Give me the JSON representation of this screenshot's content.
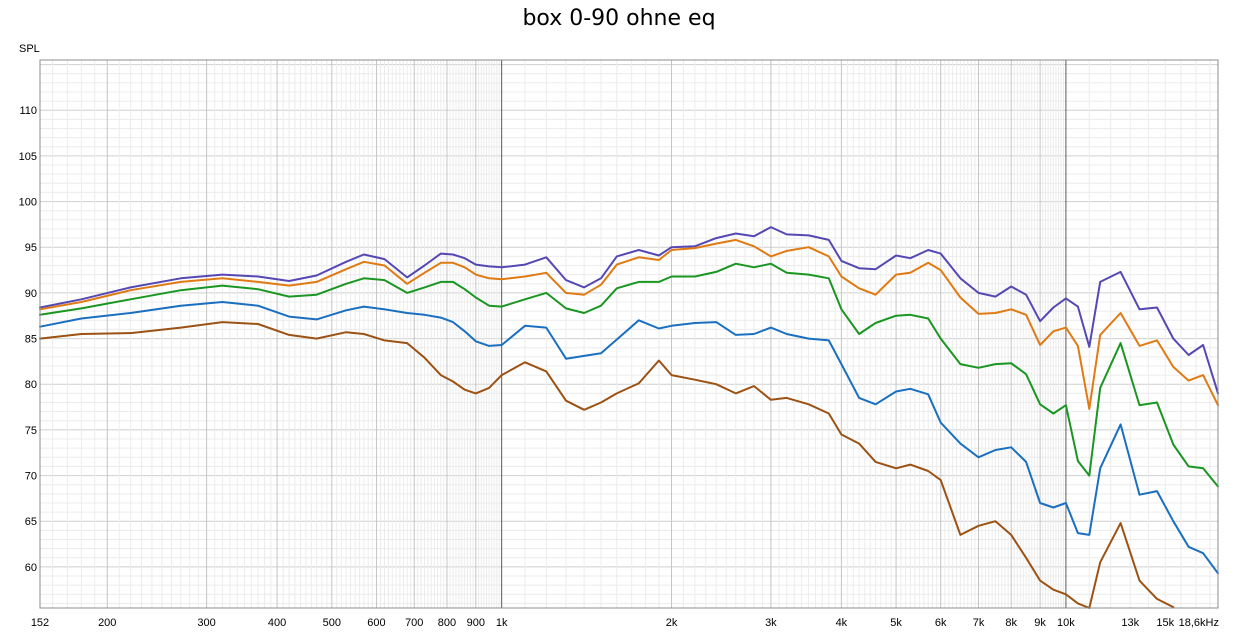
{
  "chart_data": {
    "type": "line",
    "title": "box 0-90 ohne eq",
    "ylabel": "SPL",
    "xlabel": "",
    "x_scale": "log",
    "xlim": [
      152,
      18600
    ],
    "ylim": [
      55.5,
      115.5
    ],
    "grid": true,
    "legend": "none",
    "x_tick_labels": [
      {
        "value": 152,
        "label": "152"
      },
      {
        "value": 200,
        "label": "200"
      },
      {
        "value": 300,
        "label": "300"
      },
      {
        "value": 400,
        "label": "400"
      },
      {
        "value": 500,
        "label": "500"
      },
      {
        "value": 600,
        "label": "600"
      },
      {
        "value": 700,
        "label": "700"
      },
      {
        "value": 800,
        "label": "800"
      },
      {
        "value": 900,
        "label": "900"
      },
      {
        "value": 1000,
        "label": "1k"
      },
      {
        "value": 2000,
        "label": "2k"
      },
      {
        "value": 3000,
        "label": "3k"
      },
      {
        "value": 4000,
        "label": "4k"
      },
      {
        "value": 5000,
        "label": "5k"
      },
      {
        "value": 6000,
        "label": "6k"
      },
      {
        "value": 7000,
        "label": "7k"
      },
      {
        "value": 8000,
        "label": "8k"
      },
      {
        "value": 9000,
        "label": "9k"
      },
      {
        "value": 10000,
        "label": "10k"
      },
      {
        "value": 13000,
        "label": "13k"
      },
      {
        "value": 15000,
        "label": "15k"
      },
      {
        "value": 18600,
        "label": "18,6kHz"
      }
    ],
    "y_tick_labels": [
      {
        "value": 60,
        "label": "60"
      },
      {
        "value": 65,
        "label": "65"
      },
      {
        "value": 70,
        "label": "70"
      },
      {
        "value": 75,
        "label": "75"
      },
      {
        "value": 80,
        "label": "80"
      },
      {
        "value": 85,
        "label": "85"
      },
      {
        "value": 90,
        "label": "90"
      },
      {
        "value": 95,
        "label": "95"
      },
      {
        "value": 100,
        "label": "100"
      },
      {
        "value": 105,
        "label": "105"
      },
      {
        "value": 110,
        "label": "110"
      }
    ],
    "series": [
      {
        "color": "#5548b4",
        "x": [
          152,
          180,
          220,
          270,
          320,
          370,
          420,
          470,
          530,
          570,
          620,
          680,
          730,
          780,
          820,
          860,
          900,
          950,
          1000,
          1100,
          1200,
          1300,
          1400,
          1500,
          1600,
          1750,
          1900,
          2000,
          2200,
          2400,
          2600,
          2800,
          3000,
          3200,
          3500,
          3800,
          4000,
          4300,
          4600,
          5000,
          5300,
          5700,
          6000,
          6500,
          7000,
          7500,
          8000,
          8500,
          9000,
          9500,
          10000,
          10500,
          11000,
          11500,
          12500,
          13500,
          14500,
          15500,
          16500,
          17500,
          18600
        ],
        "y": [
          88.4,
          89.3,
          90.6,
          91.6,
          92.0,
          91.8,
          91.3,
          91.9,
          93.4,
          94.2,
          93.7,
          91.7,
          93.0,
          94.3,
          94.2,
          93.8,
          93.1,
          92.9,
          92.8,
          93.1,
          93.9,
          91.4,
          90.6,
          91.6,
          94.0,
          94.7,
          94.1,
          95.0,
          95.1,
          96.0,
          96.5,
          96.2,
          97.2,
          96.4,
          96.3,
          95.8,
          93.5,
          92.7,
          92.6,
          94.1,
          93.8,
          94.7,
          94.3,
          91.6,
          90.0,
          89.6,
          90.7,
          89.8,
          86.9,
          88.4,
          89.4,
          88.5,
          84.1,
          91.2,
          92.3,
          88.2,
          88.4,
          85.0,
          83.2,
          84.3,
          79.0
        ]
      },
      {
        "color": "#e07a12",
        "x": [
          152,
          180,
          220,
          270,
          320,
          370,
          420,
          470,
          530,
          570,
          620,
          680,
          730,
          780,
          820,
          860,
          900,
          950,
          1000,
          1100,
          1200,
          1300,
          1400,
          1500,
          1600,
          1750,
          1900,
          2000,
          2200,
          2400,
          2600,
          2800,
          3000,
          3200,
          3500,
          3800,
          4000,
          4300,
          4600,
          5000,
          5300,
          5700,
          6000,
          6500,
          7000,
          7500,
          8000,
          8500,
          9000,
          9500,
          10000,
          10500,
          11000,
          11500,
          12500,
          13500,
          14500,
          15500,
          16500,
          17500,
          18600
        ],
        "y": [
          88.2,
          89.0,
          90.3,
          91.2,
          91.6,
          91.2,
          90.8,
          91.2,
          92.6,
          93.4,
          93.0,
          91.0,
          92.2,
          93.3,
          93.3,
          92.8,
          92.0,
          91.6,
          91.5,
          91.8,
          92.2,
          90.0,
          89.8,
          90.9,
          93.1,
          93.9,
          93.6,
          94.7,
          94.9,
          95.4,
          95.8,
          95.1,
          94.0,
          94.6,
          95.0,
          94.0,
          91.8,
          90.5,
          89.8,
          92.0,
          92.2,
          93.3,
          92.5,
          89.5,
          87.7,
          87.8,
          88.2,
          87.6,
          84.3,
          85.8,
          86.2,
          84.2,
          77.3,
          85.4,
          87.8,
          84.2,
          84.8,
          81.9,
          80.4,
          81.0,
          77.7
        ]
      },
      {
        "color": "#1a9622",
        "x": [
          152,
          180,
          220,
          270,
          320,
          370,
          420,
          470,
          530,
          570,
          620,
          680,
          730,
          780,
          820,
          860,
          900,
          950,
          1000,
          1100,
          1200,
          1300,
          1400,
          1500,
          1600,
          1750,
          1900,
          2000,
          2200,
          2400,
          2600,
          2800,
          3000,
          3200,
          3500,
          3800,
          4000,
          4300,
          4600,
          5000,
          5300,
          5700,
          6000,
          6500,
          7000,
          7500,
          8000,
          8500,
          9000,
          9500,
          10000,
          10500,
          11000,
          11500,
          12500,
          13500,
          14500,
          15500,
          16500,
          17500,
          18600
        ],
        "y": [
          87.6,
          88.3,
          89.3,
          90.3,
          90.8,
          90.4,
          89.6,
          89.8,
          91.0,
          91.6,
          91.4,
          90.0,
          90.6,
          91.2,
          91.2,
          90.4,
          89.5,
          88.6,
          88.5,
          89.3,
          90.0,
          88.3,
          87.8,
          88.6,
          90.5,
          91.2,
          91.2,
          91.8,
          91.8,
          92.3,
          93.2,
          92.8,
          93.2,
          92.2,
          92.0,
          91.6,
          88.2,
          85.5,
          86.7,
          87.5,
          87.6,
          87.2,
          85.0,
          82.2,
          81.8,
          82.2,
          82.3,
          81.1,
          77.8,
          76.8,
          77.7,
          71.6,
          70.0,
          79.6,
          84.5,
          77.7,
          78.0,
          73.4,
          71.0,
          70.8,
          68.8
        ]
      },
      {
        "color": "#1a6fc0",
        "x": [
          152,
          180,
          220,
          270,
          320,
          370,
          420,
          470,
          530,
          570,
          620,
          680,
          730,
          780,
          820,
          860,
          900,
          950,
          1000,
          1100,
          1200,
          1300,
          1400,
          1500,
          1600,
          1750,
          1900,
          2000,
          2200,
          2400,
          2600,
          2800,
          3000,
          3200,
          3500,
          3800,
          4000,
          4300,
          4600,
          5000,
          5300,
          5700,
          6000,
          6500,
          7000,
          7500,
          8000,
          8500,
          9000,
          9500,
          10000,
          10500,
          11000,
          11500,
          12500,
          13500,
          14500,
          15500,
          16500,
          17500,
          18600
        ],
        "y": [
          86.3,
          87.2,
          87.8,
          88.6,
          89.0,
          88.6,
          87.4,
          87.1,
          88.1,
          88.5,
          88.2,
          87.8,
          87.6,
          87.3,
          86.8,
          85.8,
          84.7,
          84.2,
          84.3,
          86.4,
          86.2,
          82.8,
          83.1,
          83.4,
          84.9,
          87.0,
          86.1,
          86.4,
          86.7,
          86.8,
          85.4,
          85.5,
          86.2,
          85.5,
          85.0,
          84.8,
          82.2,
          78.5,
          77.8,
          79.2,
          79.5,
          78.9,
          75.8,
          73.5,
          72.0,
          72.8,
          73.1,
          71.5,
          67.0,
          66.5,
          67.0,
          63.7,
          63.5,
          70.8,
          75.6,
          67.9,
          68.3,
          65.0,
          62.2,
          61.5,
          59.3
        ]
      },
      {
        "color": "#9c5214",
        "x": [
          152,
          180,
          220,
          270,
          320,
          370,
          420,
          470,
          530,
          570,
          620,
          680,
          730,
          780,
          820,
          860,
          900,
          950,
          1000,
          1100,
          1200,
          1300,
          1400,
          1500,
          1600,
          1750,
          1900,
          2000,
          2200,
          2400,
          2600,
          2800,
          3000,
          3200,
          3500,
          3800,
          4000,
          4300,
          4600,
          5000,
          5300,
          5700,
          6000,
          6500,
          7000,
          7500,
          8000,
          8500,
          9000,
          9500,
          10000,
          10500,
          11000,
          11500,
          12500,
          13500,
          14500,
          15500
        ],
        "y": [
          85.0,
          85.5,
          85.6,
          86.2,
          86.8,
          86.6,
          85.4,
          85.0,
          85.7,
          85.5,
          84.8,
          84.5,
          82.9,
          81.0,
          80.3,
          79.4,
          79.0,
          79.6,
          81.0,
          82.4,
          81.4,
          78.2,
          77.2,
          78.0,
          79.0,
          80.1,
          82.6,
          81.0,
          80.5,
          80.0,
          79.0,
          79.8,
          78.3,
          78.5,
          77.8,
          76.8,
          74.5,
          73.5,
          71.5,
          70.8,
          71.2,
          70.5,
          69.5,
          63.5,
          64.5,
          65.0,
          63.5,
          61.0,
          58.5,
          57.5,
          57.0,
          56.0,
          55.5,
          60.5,
          64.8,
          58.5,
          56.5,
          55.6
        ]
      }
    ]
  }
}
